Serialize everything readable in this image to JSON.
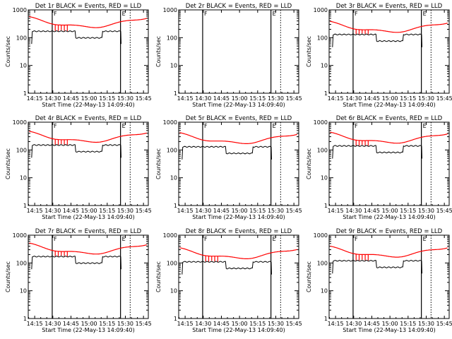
{
  "axis": {
    "ylabel": "Counts/sec",
    "xlabel": "Start Time (22-May-13 14:09:40)",
    "x_ticks": [
      "14:15",
      "14:30",
      "14:45",
      "15:00",
      "15:15",
      "15:30",
      "15:45"
    ],
    "x_tick_minutes": [
      855,
      870,
      885,
      900,
      915,
      930,
      945
    ],
    "x_range_minutes": [
      849.67,
      949
    ],
    "y_ticks": [
      "1",
      "10",
      "100",
      "1000"
    ],
    "y_tick_values": [
      1,
      10,
      100,
      1000
    ],
    "y_range": [
      1,
      1000
    ],
    "marker_labels": [
      "F",
      "E"
    ]
  },
  "colors": {
    "events": "#000000",
    "lld": "#ff0000",
    "frame": "#000000"
  },
  "legend": {
    "black": "Events",
    "red": "LLD"
  },
  "chart_data": [
    {
      "type": "line",
      "title": "Det 1r BLACK = Events, RED = LLD",
      "events_base": 170,
      "lld_base": 340,
      "spikes": 5,
      "solid_lines_min": [
        869.5,
        926.0
      ],
      "dotted_lines_min": [
        934.0
      ],
      "has_data": true
    },
    {
      "type": "line",
      "title": "Det 2r BLACK = Events, RED = LLD",
      "events_base": 0,
      "lld_base": 0,
      "spikes": 0,
      "solid_lines_min": [
        869.5,
        926.0
      ],
      "dotted_lines_min": [
        934.0
      ],
      "has_data": false
    },
    {
      "type": "line",
      "title": "Det 3r BLACK = Events, RED = LLD",
      "events_base": 130,
      "lld_base": 230,
      "spikes": 5,
      "solid_lines_min": [
        869.5,
        926.0
      ],
      "dotted_lines_min": [
        934.0
      ],
      "has_data": true
    },
    {
      "type": "line",
      "title": "Det 4r BLACK = Events, RED = LLD",
      "events_base": 150,
      "lld_base": 280,
      "spikes": 5,
      "solid_lines_min": [
        869.5,
        926.0
      ],
      "dotted_lines_min": [
        934.0
      ],
      "has_data": true
    },
    {
      "type": "line",
      "title": "Det 5r BLACK = Events, RED = LLD",
      "events_base": 130,
      "lld_base": 250,
      "spikes": 0,
      "solid_lines_min": [
        869.5,
        926.0
      ],
      "dotted_lines_min": [
        934.0
      ],
      "has_data": true
    },
    {
      "type": "line",
      "title": "Det 6r BLACK = Events, RED = LLD",
      "events_base": 140,
      "lld_base": 260,
      "spikes": 5,
      "solid_lines_min": [
        869.5,
        926.0
      ],
      "dotted_lines_min": [
        934.0
      ],
      "has_data": true
    },
    {
      "type": "line",
      "title": "Det 7r BLACK = Events, RED = LLD",
      "events_base": 170,
      "lld_base": 310,
      "spikes": 5,
      "solid_lines_min": [
        869.5,
        926.0
      ],
      "dotted_lines_min": [
        934.0
      ],
      "has_data": true
    },
    {
      "type": "line",
      "title": "Det 8r BLACK = Events, RED = LLD",
      "events_base": 110,
      "lld_base": 210,
      "spikes": 5,
      "solid_lines_min": [
        869.5,
        926.0
      ],
      "dotted_lines_min": [
        934.0
      ],
      "has_data": true
    },
    {
      "type": "line",
      "title": "Det 9r BLACK = Events, RED = LLD",
      "events_base": 120,
      "lld_base": 240,
      "spikes": 5,
      "solid_lines_min": [
        869.5,
        926.0
      ],
      "dotted_lines_min": [
        934.0
      ],
      "has_data": true
    }
  ]
}
